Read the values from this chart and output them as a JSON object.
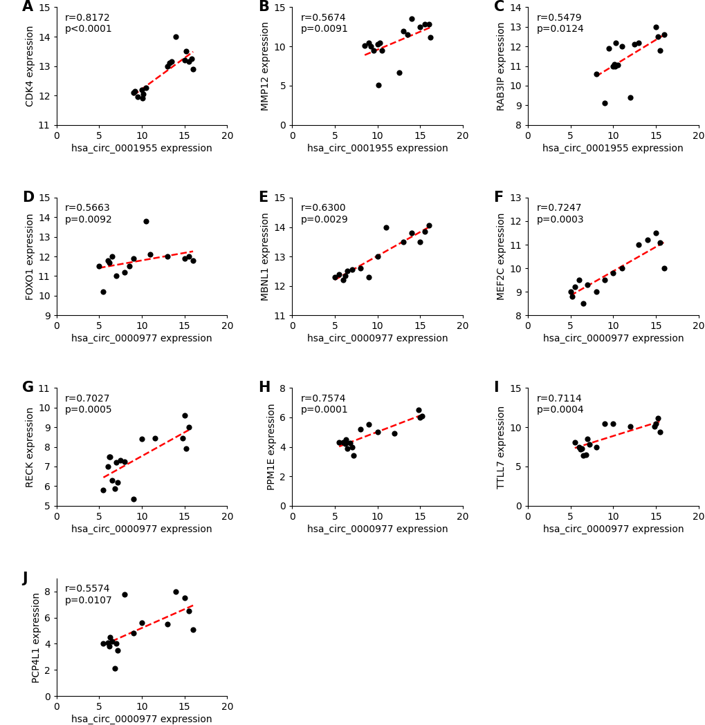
{
  "panels": [
    {
      "label": "A",
      "xlabel": "hsa_circ_0001955 expression",
      "ylabel": "CDK4 expression",
      "r": "0.8172",
      "p": "<0.0001",
      "p_prefix": "p",
      "xlim": [
        0,
        20
      ],
      "ylim": [
        11,
        15
      ],
      "yticks": [
        11,
        12,
        13,
        14,
        15
      ],
      "xticks": [
        0,
        5,
        10,
        15,
        20
      ],
      "x": [
        9.0,
        9.2,
        9.5,
        10.0,
        10.1,
        10.2,
        10.5,
        13.0,
        13.2,
        13.5,
        14.0,
        15.0,
        15.2,
        15.5,
        15.8,
        16.0
      ],
      "y": [
        12.1,
        12.15,
        11.95,
        12.2,
        11.9,
        12.05,
        12.25,
        13.0,
        13.1,
        13.15,
        14.0,
        13.2,
        13.5,
        13.15,
        13.25,
        12.9
      ]
    },
    {
      "label": "B",
      "xlabel": "hsa_circ_0001955 expression",
      "ylabel": "MMP12 expression",
      "r": "0.5674",
      "p": "0.0091",
      "p_prefix": "p=",
      "xlim": [
        0,
        20
      ],
      "ylim": [
        0,
        15
      ],
      "yticks": [
        0,
        5,
        10,
        15
      ],
      "xticks": [
        0,
        5,
        10,
        15,
        20
      ],
      "x": [
        8.5,
        9.0,
        9.2,
        9.5,
        10.0,
        10.1,
        10.3,
        10.5,
        12.5,
        13.0,
        13.5,
        14.0,
        15.0,
        15.5,
        16.0,
        16.2
      ],
      "y": [
        10.1,
        10.5,
        10.0,
        9.5,
        10.3,
        5.1,
        10.5,
        9.5,
        6.7,
        12.0,
        11.5,
        13.5,
        12.5,
        12.8,
        12.8,
        11.2
      ]
    },
    {
      "label": "C",
      "xlabel": "hsa_circ_0001955 expression",
      "ylabel": "RAB3IP expression",
      "r": "0.5479",
      "p": "0.0124",
      "p_prefix": "p=",
      "xlim": [
        0,
        20
      ],
      "ylim": [
        8,
        14
      ],
      "yticks": [
        8,
        9,
        10,
        11,
        12,
        13,
        14
      ],
      "xticks": [
        0,
        5,
        10,
        15,
        20
      ],
      "x": [
        8.0,
        9.0,
        9.5,
        10.0,
        10.1,
        10.2,
        10.3,
        10.5,
        11.0,
        12.0,
        12.5,
        13.0,
        15.0,
        15.2,
        15.5,
        16.0
      ],
      "y": [
        10.6,
        9.1,
        11.9,
        11.0,
        11.1,
        11.0,
        12.2,
        11.05,
        12.0,
        9.4,
        12.1,
        12.2,
        13.0,
        12.5,
        11.8,
        12.6
      ]
    },
    {
      "label": "D",
      "xlabel": "hsa_circ_0000977 expression",
      "ylabel": "FOXO1 expression",
      "r": "0.5663",
      "p": "0.0092",
      "p_prefix": "p=",
      "xlim": [
        0,
        20
      ],
      "ylim": [
        9,
        15
      ],
      "yticks": [
        9,
        10,
        11,
        12,
        13,
        14,
        15
      ],
      "xticks": [
        0,
        5,
        10,
        15,
        20
      ],
      "x": [
        5.0,
        5.5,
        6.0,
        6.2,
        6.5,
        7.0,
        8.0,
        8.5,
        9.0,
        10.5,
        11.0,
        13.0,
        15.0,
        15.5,
        16.0
      ],
      "y": [
        11.5,
        10.2,
        11.8,
        11.7,
        12.0,
        11.0,
        11.2,
        11.5,
        11.9,
        13.8,
        12.1,
        12.0,
        11.9,
        12.0,
        11.8
      ]
    },
    {
      "label": "E",
      "xlabel": "hsa_circ_0000977 expression",
      "ylabel": "MBNL1 expression",
      "r": "0.6300",
      "p": "0.0029",
      "p_prefix": "p=",
      "xlim": [
        0,
        20
      ],
      "ylim": [
        11,
        15
      ],
      "yticks": [
        11,
        12,
        13,
        14,
        15
      ],
      "xticks": [
        0,
        5,
        10,
        15,
        20
      ],
      "x": [
        5.0,
        5.5,
        6.0,
        6.2,
        6.5,
        7.0,
        8.0,
        9.0,
        10.0,
        11.0,
        13.0,
        14.0,
        15.0,
        15.5,
        16.0
      ],
      "y": [
        12.3,
        12.4,
        12.2,
        12.35,
        12.5,
        12.55,
        12.6,
        12.3,
        13.0,
        14.0,
        13.5,
        13.8,
        13.5,
        13.85,
        14.05
      ]
    },
    {
      "label": "F",
      "xlabel": "hsa_circ_0000977 expression",
      "ylabel": "MEF2C expression",
      "r": "0.7247",
      "p": "0.0003",
      "p_prefix": "p=",
      "xlim": [
        0,
        20
      ],
      "ylim": [
        8,
        13
      ],
      "yticks": [
        8,
        9,
        10,
        11,
        12,
        13
      ],
      "xticks": [
        0,
        5,
        10,
        15,
        20
      ],
      "x": [
        5.0,
        5.2,
        5.5,
        6.0,
        6.5,
        7.0,
        8.0,
        9.0,
        10.0,
        11.0,
        13.0,
        14.0,
        15.0,
        15.5,
        16.0
      ],
      "y": [
        9.0,
        8.8,
        9.2,
        9.5,
        8.5,
        9.3,
        9.0,
        9.5,
        9.8,
        10.0,
        11.0,
        11.2,
        11.5,
        11.1,
        10.0
      ]
    },
    {
      "label": "G",
      "xlabel": "hsa_circ_0000977 expression",
      "ylabel": "RECK expression",
      "r": "0.7027",
      "p": "0.0005",
      "p_prefix": "p=",
      "xlim": [
        0,
        20
      ],
      "ylim": [
        5,
        11
      ],
      "yticks": [
        5,
        6,
        7,
        8,
        9,
        10,
        11
      ],
      "xticks": [
        0,
        5,
        10,
        15,
        20
      ],
      "x": [
        5.5,
        6.0,
        6.2,
        6.3,
        6.5,
        6.8,
        7.0,
        7.2,
        7.5,
        8.0,
        9.0,
        10.0,
        11.5,
        14.8,
        15.0,
        15.2,
        15.5
      ],
      "y": [
        5.8,
        7.0,
        7.5,
        7.5,
        6.3,
        5.85,
        7.2,
        6.2,
        7.3,
        7.25,
        5.35,
        8.4,
        8.45,
        8.45,
        9.6,
        7.9,
        9.0
      ]
    },
    {
      "label": "H",
      "xlabel": "hsa_circ_0000977 expression",
      "ylabel": "PPM1E expression",
      "r": "0.7574",
      "p": "0.0001",
      "p_prefix": "p=",
      "xlim": [
        0,
        20
      ],
      "ylim": [
        0,
        8
      ],
      "yticks": [
        0,
        2,
        4,
        6,
        8
      ],
      "xticks": [
        0,
        5,
        10,
        15,
        20
      ],
      "x": [
        5.5,
        6.0,
        6.2,
        6.3,
        6.5,
        6.8,
        7.0,
        7.2,
        8.0,
        9.0,
        10.0,
        12.0,
        14.8,
        15.0,
        15.2
      ],
      "y": [
        4.3,
        4.3,
        4.2,
        4.5,
        3.9,
        4.25,
        4.0,
        3.4,
        5.2,
        5.55,
        5.0,
        4.9,
        6.5,
        6.0,
        6.1
      ]
    },
    {
      "label": "I",
      "xlabel": "hsa_circ_0000977 expression",
      "ylabel": "TTLL7 expression",
      "r": "0.7114",
      "p": "0.0004",
      "p_prefix": "p=",
      "xlim": [
        0,
        20
      ],
      "ylim": [
        0,
        15
      ],
      "yticks": [
        0,
        5,
        10,
        15
      ],
      "xticks": [
        0,
        5,
        10,
        15,
        20
      ],
      "x": [
        5.5,
        6.0,
        6.2,
        6.3,
        6.5,
        6.8,
        7.0,
        7.2,
        8.0,
        9.0,
        10.0,
        12.0,
        14.8,
        15.0,
        15.2,
        15.5
      ],
      "y": [
        8.1,
        7.5,
        7.2,
        7.3,
        6.4,
        6.5,
        8.5,
        7.8,
        7.5,
        10.5,
        10.5,
        10.1,
        10.1,
        10.5,
        11.2,
        9.4
      ]
    },
    {
      "label": "J",
      "xlabel": "hsa_circ_0000977 expression",
      "ylabel": "PCP4L1 expression",
      "r": "0.5574",
      "p": "0.0107",
      "p_prefix": "p=",
      "xlim": [
        0,
        20
      ],
      "ylim": [
        0,
        9
      ],
      "yticks": [
        0,
        2,
        4,
        6,
        8
      ],
      "xticks": [
        0,
        5,
        10,
        15,
        20
      ],
      "x": [
        5.5,
        6.0,
        6.2,
        6.3,
        6.5,
        6.8,
        7.0,
        7.2,
        8.0,
        9.0,
        10.0,
        13.0,
        14.0,
        15.0,
        15.5,
        16.0
      ],
      "y": [
        4.0,
        4.1,
        3.8,
        4.5,
        4.2,
        2.1,
        4.0,
        3.5,
        7.8,
        4.8,
        5.6,
        5.5,
        8.0,
        7.5,
        6.5,
        5.1
      ]
    }
  ],
  "dot_color": "#000000",
  "line_color": "#ff0000",
  "dot_size": 35,
  "background_color": "#ffffff",
  "label_fontsize": 15,
  "tick_fontsize": 10,
  "annot_fontsize": 10,
  "axis_label_fontsize": 10
}
